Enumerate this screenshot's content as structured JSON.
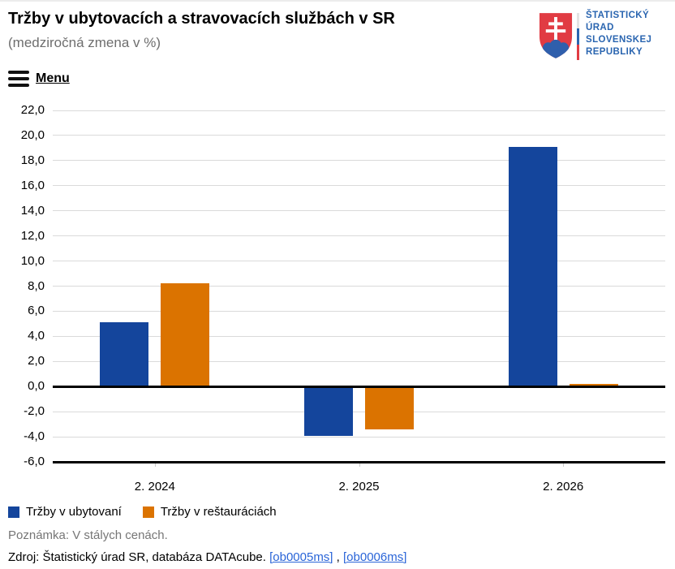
{
  "header": {
    "title": "Tržby v ubytovacích a stravovacích službách v SR",
    "subtitle": "(medziročná zmena v %)",
    "menu_label": "Menu",
    "logo": {
      "org_lines": [
        "ŠTATISTICKÝ",
        "ÚRAD",
        "SLOVENSKEJ",
        "REPUBLIKY"
      ],
      "emblem": "slovak-coat-of-arms",
      "text_color": "#2A65B0",
      "emblem_red": "#E13B43",
      "emblem_blue": "#2F5FAC"
    }
  },
  "chart_data": {
    "type": "bar",
    "title": "Tržby v ubytovacích a stravovacích službách v SR",
    "subtitle": "(medziročná zmena v %)",
    "categories": [
      "2. 2024",
      "2. 2025",
      "2. 2026"
    ],
    "series": [
      {
        "name": "Tržby v ubytovaní",
        "color": "#14459C",
        "values": [
          5.1,
          -3.9,
          19.1
        ]
      },
      {
        "name": "Tržby v reštauráciách",
        "color": "#DB7300",
        "values": [
          8.2,
          -3.4,
          0.2
        ]
      }
    ],
    "ylim": [
      -6,
      22
    ],
    "ytick_step": 2,
    "ytick_labels": [
      "22,0",
      "20,0",
      "18,0",
      "16,0",
      "14,0",
      "12,0",
      "10,0",
      "8,0",
      "6,0",
      "4,0",
      "2,0",
      "0,0",
      "-2,0",
      "-4,0",
      "-6,0"
    ],
    "grid": true,
    "legend_position": "bottom",
    "decimal_separator": ","
  },
  "footer": {
    "note": "Poznámka: V stálych cenách.",
    "source_prefix": "Zdroj: Štatistický úrad SR, databáza DATAcube. ",
    "links": [
      {
        "label": "[ob0005ms]"
      },
      {
        "label": "[ob0006ms]"
      }
    ],
    "link_separator": " , "
  }
}
